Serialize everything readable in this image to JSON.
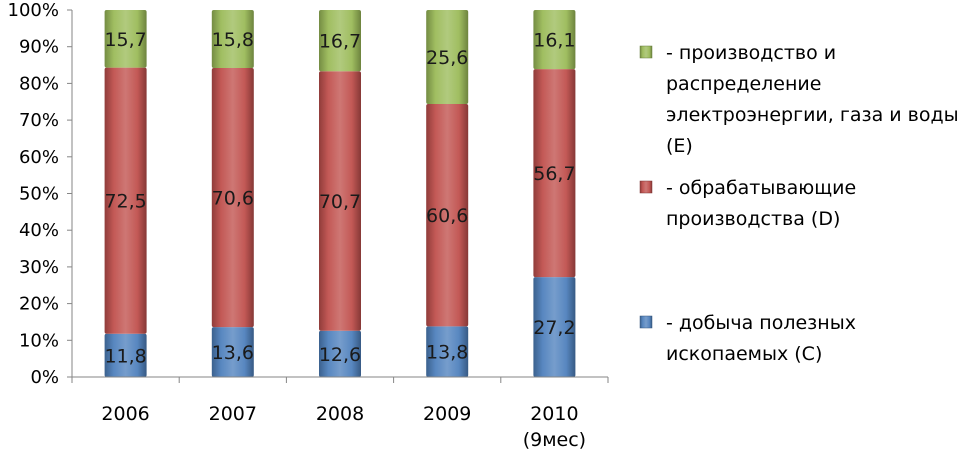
{
  "chart_data": {
    "type": "bar",
    "stacked": true,
    "percent": true,
    "categories": [
      "2006",
      "2007",
      "2008",
      "2009",
      "2010 (9мес)"
    ],
    "category_lines": [
      [
        "2006"
      ],
      [
        "2007"
      ],
      [
        "2008"
      ],
      [
        "2009"
      ],
      [
        "2010",
        "(9мес)"
      ]
    ],
    "series": [
      {
        "name": "- добыча полезных ископаемых (С)",
        "name_lines": [
          "- добыча полезных",
          "ископаемых (С)"
        ],
        "values": [
          11.8,
          13.6,
          12.6,
          13.8,
          27.2
        ],
        "labels": [
          "11,8",
          "13,6",
          "12,6",
          "13,8",
          "27,2"
        ],
        "color": "#4f81bd"
      },
      {
        "name": "- обрабатывающие производства (D)",
        "name_lines": [
          "- обрабатывающие",
          "производства (D)"
        ],
        "values": [
          72.5,
          70.6,
          70.7,
          60.6,
          56.7
        ],
        "labels": [
          "72,5",
          "70,6",
          "70,7",
          "60,6",
          "56,7"
        ],
        "color": "#c0504d"
      },
      {
        "name": "- производство и распределение электроэнергии, газа и воды (Е)",
        "name_lines": [
          "- производство и",
          "распределение",
          "электроэнергии, газа и воды",
          "(Е)"
        ],
        "values": [
          15.7,
          15.8,
          16.7,
          25.6,
          16.1
        ],
        "labels": [
          "15,7",
          "15,8",
          "16,7",
          "25,6",
          "16,1"
        ],
        "color": "#9bbb59"
      }
    ],
    "y_ticks": [
      "0%",
      "10%",
      "20%",
      "30%",
      "40%",
      "50%",
      "60%",
      "70%",
      "80%",
      "90%",
      "100%"
    ],
    "ylim": [
      0,
      100
    ],
    "grid": false,
    "legend_position": "right"
  }
}
